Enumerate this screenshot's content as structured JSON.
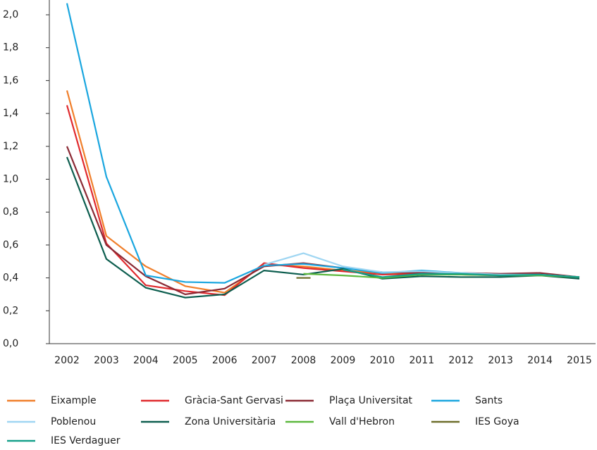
{
  "chart_data": {
    "type": "line",
    "categories": [
      "2002",
      "2003",
      "2004",
      "2005",
      "2006",
      "2007",
      "2008",
      "2009",
      "2010",
      "2011",
      "2012",
      "2013",
      "2014",
      "2015"
    ],
    "ylim": [
      0,
      2.09
    ],
    "yticks": [
      {
        "value": 0,
        "label": "0,0"
      },
      {
        "value": 0.2,
        "label": "0,2"
      },
      {
        "value": 0.4,
        "label": "0,4"
      },
      {
        "value": 0.6,
        "label": "0,6"
      },
      {
        "value": 0.8,
        "label": "0,8"
      },
      {
        "value": 1.0,
        "label": "1,0"
      },
      {
        "value": 1.2,
        "label": "1,2"
      },
      {
        "value": 1.4,
        "label": "1,4"
      },
      {
        "value": 1.6,
        "label": "1,6"
      },
      {
        "value": 1.8,
        "label": "1,8"
      },
      {
        "value": 2.0,
        "label": "2,0"
      }
    ],
    "grid": false,
    "series": [
      {
        "name": "Eixample",
        "color": "#f07f2b",
        "values": [
          1.54,
          0.655,
          0.47,
          0.35,
          0.31,
          0.48,
          0.47,
          0.445,
          0.43,
          0.43,
          0.42,
          0.415,
          0.42,
          0.405
        ]
      },
      {
        "name": "Gràcia-Sant Gervasi",
        "color": "#e02a2e",
        "values": [
          1.45,
          0.61,
          0.355,
          0.32,
          0.295,
          0.49,
          0.46,
          0.44,
          0.42,
          0.425,
          0.425,
          0.415,
          0.425,
          0.4
        ]
      },
      {
        "name": "Plaça Universitat",
        "color": "#8b2a35",
        "values": [
          1.2,
          0.6,
          0.41,
          0.3,
          0.335,
          0.47,
          0.49,
          0.46,
          0.435,
          0.43,
          0.43,
          0.425,
          0.43,
          0.405
        ]
      },
      {
        "name": "Sants",
        "color": "#1aa6df",
        "values": [
          2.07,
          1.015,
          0.415,
          0.375,
          0.37,
          0.475,
          0.485,
          0.46,
          0.43,
          0.445,
          0.43,
          0.42,
          0.42,
          0.405
        ]
      },
      {
        "name": "Poblenou",
        "color": "#9fd6f2",
        "values": [
          null,
          null,
          null,
          null,
          null,
          0.48,
          0.55,
          0.47,
          0.435,
          0.44,
          0.43,
          0.42,
          0.42,
          0.405
        ]
      },
      {
        "name": "Zona Universitària",
        "color": "#0d5e4f",
        "values": [
          1.135,
          0.515,
          0.34,
          0.28,
          0.3,
          0.445,
          0.42,
          0.455,
          0.395,
          0.41,
          0.405,
          0.405,
          0.415,
          0.395
        ]
      },
      {
        "name": "Vall d'Hebron",
        "color": "#5cb83d",
        "values": [
          null,
          null,
          null,
          null,
          null,
          null,
          0.425,
          0.415,
          0.4,
          0.42,
          0.42,
          0.415,
          0.415,
          0.405
        ]
      },
      {
        "name": "IES Goya",
        "color": "#6d6e2a",
        "values": [
          null,
          null,
          null,
          null,
          null,
          null,
          0.4,
          null,
          null,
          null,
          null,
          null,
          null,
          null
        ]
      },
      {
        "name": "IES Verdaguer",
        "color": "#16a08a",
        "values": [
          null,
          null,
          null,
          null,
          null,
          null,
          null,
          0.45,
          0.405,
          0.425,
          0.425,
          0.415,
          0.42,
          0.405
        ]
      }
    ]
  }
}
